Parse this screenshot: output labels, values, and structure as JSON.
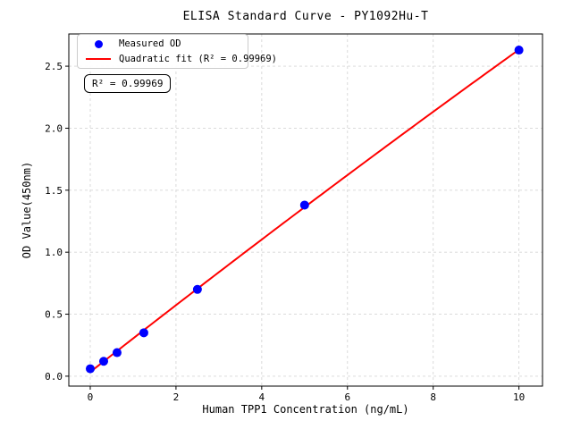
{
  "chart_data": {
    "type": "scatter",
    "title": "ELISA Standard Curve - PY1092Hu-T",
    "xlabel": "Human TPP1 Concentration (ng/mL)",
    "ylabel": "OD Value(450nm)",
    "xlim": [
      -0.5,
      10.55
    ],
    "ylim": [
      -0.08,
      2.76
    ],
    "x_ticks": {
      "values": [
        0,
        2,
        4,
        6,
        8,
        10
      ],
      "labels": [
        "0",
        "2",
        "4",
        "6",
        "8",
        "10"
      ]
    },
    "y_ticks": {
      "values": [
        0,
        0.5,
        1,
        1.5,
        2,
        2.5
      ],
      "labels": [
        "0.0",
        "0.5",
        "1.0",
        "1.5",
        "2.0",
        "2.5"
      ]
    },
    "grid": "dashed",
    "legend_position": "upper left",
    "series": [
      {
        "name": "Measured OD",
        "type": "scatter",
        "color": "#0000ff",
        "x": [
          0,
          0.313,
          0.625,
          1.25,
          2.5,
          5,
          10
        ],
        "y": [
          0.06,
          0.12,
          0.19,
          0.35,
          0.7,
          1.38,
          2.63
        ]
      },
      {
        "name": "Quadratic fit (R² = 0.99969)",
        "type": "quadratic_fit_line",
        "color": "#ff0000",
        "r_squared": 0.99969
      }
    ],
    "annotation": "R² = 0.99969"
  },
  "legend": {
    "items": [
      {
        "label": "Measured OD",
        "marker": "dot",
        "color": "#0000ff"
      },
      {
        "label": "Quadratic fit (R² = 0.99969)",
        "marker": "line",
        "color": "#ff0000"
      }
    ]
  },
  "annotation_box": {
    "text": "R² = 0.99969"
  },
  "colors": {
    "scatter_point": "#0000ff",
    "fit_line": "#ff0000",
    "grid_line": "#d6d6d6",
    "axis": "#000000",
    "legend_border": "#cccccc",
    "background": "#ffffff"
  }
}
